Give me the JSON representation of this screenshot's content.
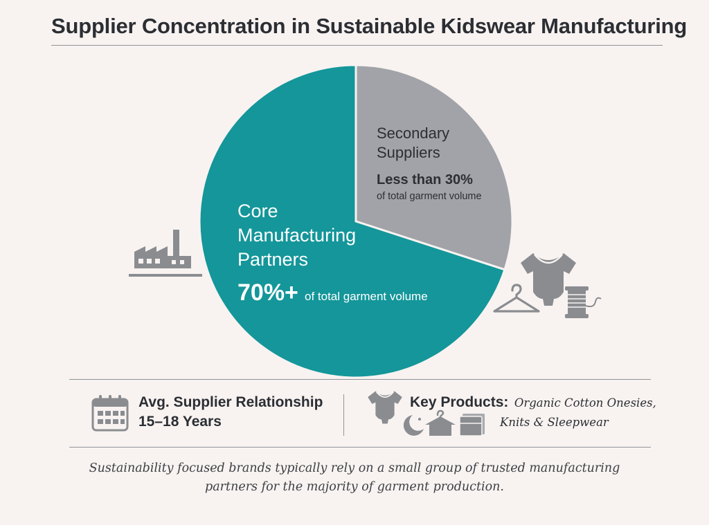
{
  "title": "Supplier Concentration in Sustainable Kidswear Manufacturing",
  "chart_data": {
    "type": "pie",
    "title": "Supplier Concentration in Sustainable Kidswear Manufacturing",
    "slices": [
      {
        "name_lines": [
          "Core",
          "Manufacturing",
          "Partners"
        ],
        "value": 70,
        "value_label": "70%+",
        "sub_label": "of total garment volume",
        "color": "#14969a"
      },
      {
        "name_lines": [
          "Secondary",
          "Suppliers"
        ],
        "value": 30,
        "value_label": "Less than 30%",
        "sub_label": "of total garment volume",
        "color": "#a1a3a8"
      }
    ],
    "legend": "none"
  },
  "stats": {
    "relationship_label": "Avg. Supplier Relationship",
    "relationship_value": "15–18 Years",
    "products_label": "Key Products:",
    "products_line1": "Organic Cotton Onesies,",
    "products_line2": "Knits & Sleepwear"
  },
  "note": {
    "line1": "Sustainability focused brands typically rely on a small group of trusted manufacturing",
    "line2": "partners for the majority of garment production."
  },
  "icons": {
    "factory": "factory-icon",
    "onesie": "onesie-icon",
    "hanger": "hanger-icon",
    "thread": "thread-spool-icon",
    "calendar": "calendar-icon",
    "moon": "moon-icon",
    "stack": "folded-clothes-icon"
  },
  "colors": {
    "accent": "#14969a",
    "secondary": "#a1a3a8",
    "icon": "#8a8c90"
  }
}
